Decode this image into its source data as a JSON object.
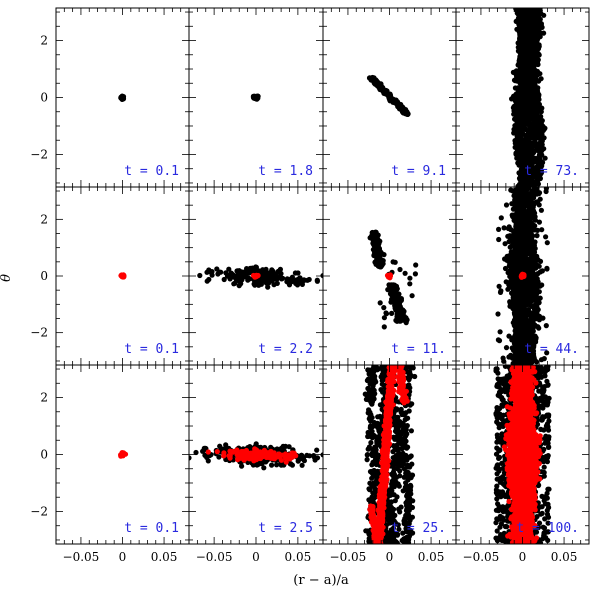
{
  "chart_data": {
    "type": "scatter",
    "layout": "3x4 grid of small-multiple panels",
    "xlabel": "(r − a)/a",
    "ylabel": "θ",
    "xlim": [
      -0.08,
      0.08
    ],
    "ylim": [
      -3.1416,
      3.1416
    ],
    "xticks": [
      -0.05,
      0,
      0.05
    ],
    "xtick_labels": [
      "−0.05",
      "0",
      "0.05"
    ],
    "yticks": [
      -2,
      0,
      2
    ],
    "ytick_labels": [
      "−2",
      "0",
      "2"
    ],
    "colors": {
      "black_points": "#000000",
      "red_points": "#ff0000",
      "time_label": "#2a2adf"
    },
    "panels": [
      {
        "row": 0,
        "col": 0,
        "label": "t = 0.1",
        "black": [
          {
            "shape": "blob",
            "center": [
              0.0,
              0.0
            ],
            "dx": 0.002,
            "dy": 0.05,
            "n": 30
          }
        ],
        "red": []
      },
      {
        "row": 0,
        "col": 1,
        "label": "t = 1.8",
        "black": [
          {
            "shape": "blob",
            "center": [
              0.0,
              0.0
            ],
            "dx": 0.003,
            "dy": 0.06,
            "n": 30
          }
        ],
        "red": []
      },
      {
        "row": 0,
        "col": 2,
        "label": "t = 9.1",
        "black": [
          {
            "shape": "band",
            "from": [
              -0.022,
              0.7
            ],
            "to": [
              0.022,
              -0.6
            ],
            "width": 0.003,
            "n": 220
          }
        ],
        "red": []
      },
      {
        "row": 0,
        "col": 3,
        "label": "t = 73.",
        "black": [
          {
            "shape": "vstripes",
            "x_centers": [
              -0.004,
              0.0,
              0.003,
              0.008,
              0.013,
              0.018
            ],
            "y_range": [
              -3.14,
              3.14
            ],
            "spread": 0.006,
            "n": 1400
          },
          {
            "shape": "band",
            "from": [
              0.003,
              0.7
            ],
            "to": [
              0.018,
              3.14
            ],
            "width": 0.0018,
            "n": 160
          },
          {
            "shape": "band",
            "from": [
              0.001,
              0.3
            ],
            "to": [
              0.008,
              3.14
            ],
            "width": 0.0018,
            "n": 160
          },
          {
            "shape": "band",
            "from": [
              0.005,
              1.2
            ],
            "to": [
              0.02,
              3.14
            ],
            "width": 0.0015,
            "n": 120
          }
        ],
        "red": []
      },
      {
        "row": 1,
        "col": 0,
        "label": "t = 0.1",
        "black": [],
        "red": [
          {
            "shape": "blob",
            "center": [
              0.0,
              0.0
            ],
            "dx": 0.002,
            "dy": 0.04,
            "n": 25
          }
        ]
      },
      {
        "row": 1,
        "col": 1,
        "label": "t = 2.2",
        "black": [
          {
            "shape": "band",
            "from": [
              -0.013,
              0.2
            ],
            "to": [
              -0.001,
              0.05
            ],
            "width": 0.05,
            "n": 90
          },
          {
            "shape": "band",
            "from": [
              0.004,
              -0.05
            ],
            "to": [
              0.023,
              -0.25
            ],
            "width": 0.05,
            "n": 110
          }
        ],
        "red": [
          {
            "shape": "blob",
            "center": [
              0.0,
              0.0
            ],
            "dx": 0.002,
            "dy": 0.04,
            "n": 20
          }
        ]
      },
      {
        "row": 1,
        "col": 2,
        "label": "t = 11.",
        "black": [
          {
            "shape": "band",
            "from": [
              -0.018,
              1.55
            ],
            "to": [
              -0.012,
              0.3
            ],
            "width": 0.004,
            "n": 200
          },
          {
            "shape": "band",
            "from": [
              0.003,
              -0.3
            ],
            "to": [
              0.015,
              -1.6
            ],
            "width": 0.005,
            "n": 230
          },
          {
            "shape": "scatter",
            "center": [
              0.01,
              -0.7
            ],
            "dx": 0.022,
            "dy": 1.3,
            "n": 25
          }
        ],
        "red": [
          {
            "shape": "blob",
            "center": [
              0.0,
              0.0
            ],
            "dx": 0.002,
            "dy": 0.05,
            "n": 20
          }
        ]
      },
      {
        "row": 1,
        "col": 3,
        "label": "t = 44.",
        "black": [
          {
            "shape": "vstripes",
            "x_centers": [
              -0.008,
              -0.002,
              0.004,
              0.012
            ],
            "y_range": [
              -3.14,
              3.14
            ],
            "spread": 0.008,
            "n": 1500
          },
          {
            "shape": "scatter",
            "center": [
              0.0,
              0.0
            ],
            "dx": 0.03,
            "dy": 3.1,
            "n": 80
          }
        ],
        "red": [
          {
            "shape": "blob",
            "center": [
              0.0,
              0.0
            ],
            "dx": 0.002,
            "dy": 0.05,
            "n": 20
          }
        ]
      },
      {
        "row": 2,
        "col": 0,
        "label": "t = 0.1",
        "black": [],
        "red": [
          {
            "shape": "blob",
            "center": [
              0.0,
              0.0
            ],
            "dx": 0.002,
            "dy": 0.06,
            "n": 25
          }
        ]
      },
      {
        "row": 2,
        "col": 1,
        "label": "t = 2.5",
        "black": [
          {
            "shape": "band",
            "from": [
              -0.013,
              0.22
            ],
            "to": [
              0.022,
              -0.3
            ],
            "width": 0.06,
            "n": 260
          }
        ],
        "red": [
          {
            "shape": "band",
            "from": [
              -0.003,
              0.12
            ],
            "to": [
              0.012,
              -0.15
            ],
            "width": 0.04,
            "n": 120
          }
        ]
      },
      {
        "row": 2,
        "col": 2,
        "label": "t = 25.",
        "black": [
          {
            "shape": "vstripes",
            "x_centers": [
              -0.02,
              -0.008,
              0.005,
              0.02
            ],
            "y_range": [
              -3.14,
              3.14
            ],
            "spread": 0.007,
            "n": 700
          },
          {
            "shape": "scatter",
            "center": [
              0.0,
              0.0
            ],
            "dx": 0.028,
            "dy": 3.1,
            "n": 120
          }
        ],
        "red": [
          {
            "shape": "band",
            "from": [
              -0.013,
              -3.14
            ],
            "to": [
              0.003,
              3.14
            ],
            "width": 0.0035,
            "n": 700
          },
          {
            "shape": "band",
            "from": [
              0.012,
              3.14
            ],
            "to": [
              0.018,
              1.8
            ],
            "width": 0.003,
            "n": 140
          },
          {
            "shape": "band",
            "from": [
              -0.022,
              -1.8
            ],
            "to": [
              -0.015,
              -3.14
            ],
            "width": 0.003,
            "n": 120
          }
        ]
      },
      {
        "row": 2,
        "col": 3,
        "label": "t = 100.",
        "black": [
          {
            "shape": "scatter",
            "center": [
              0.0,
              0.0
            ],
            "dx": 0.032,
            "dy": 3.1,
            "n": 700
          },
          {
            "shape": "vstripes",
            "x_centers": [
              -0.012,
              0.0,
              0.012
            ],
            "y_range": [
              -3.14,
              3.14
            ],
            "spread": 0.01,
            "n": 600
          }
        ],
        "red": [
          {
            "shape": "vstripes",
            "x_centers": [
              -0.008,
              0.0,
              0.008
            ],
            "y_range": [
              -3.14,
              3.14
            ],
            "spread": 0.009,
            "n": 2400
          }
        ]
      }
    ]
  }
}
